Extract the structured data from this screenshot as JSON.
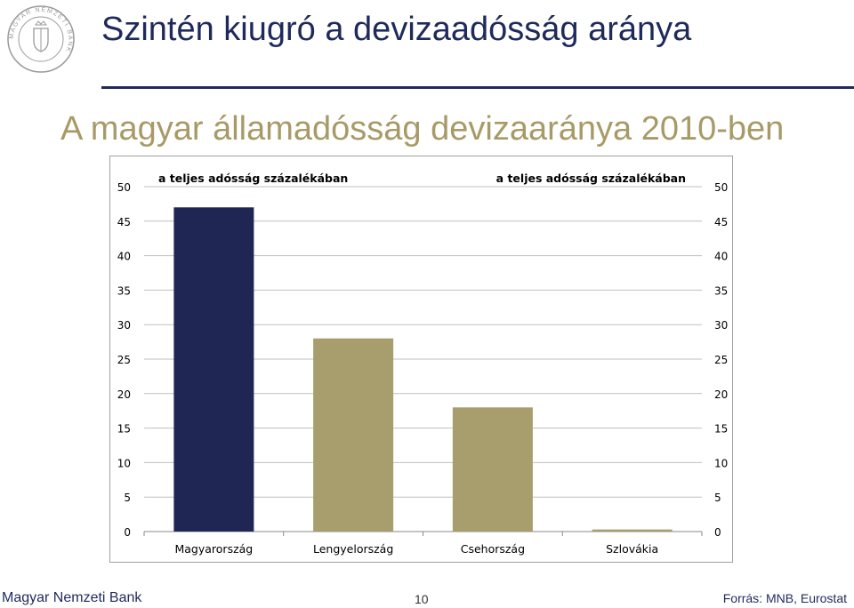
{
  "slide": {
    "title": "Szintén kiugró a devizaadósság aránya",
    "subtitle": "A magyar államadósság devizaaránya 2010-ben",
    "footer_left": "Magyar Nemzeti Bank",
    "page_number": "10",
    "source": "Forrás: MNB, Eurostat",
    "logo_text": "MAGYAR NEMZETI BANK"
  },
  "colors": {
    "title": "#1f2a5c",
    "subtitle": "#a89a67",
    "bar_highlight": "#202654",
    "bar_other": "#a89d6c",
    "gridline": "#bfbfbf"
  },
  "chart_data": {
    "type": "bar",
    "categories": [
      "Magyarország",
      "Lengyelország",
      "Csehország",
      "Szlovákia"
    ],
    "values": [
      47,
      28,
      18,
      0.3
    ],
    "bar_colors": [
      "#202654",
      "#a89d6c",
      "#a89d6c",
      "#a89d6c"
    ],
    "left_axis_label": "a teljes adósság százalékában",
    "right_axis_label": "a teljes adósság százalékában",
    "ylim": [
      0,
      50
    ],
    "yticks": [
      0,
      5,
      10,
      15,
      20,
      25,
      30,
      35,
      40,
      45,
      50
    ],
    "grid": true,
    "dual_y_axis": true
  }
}
